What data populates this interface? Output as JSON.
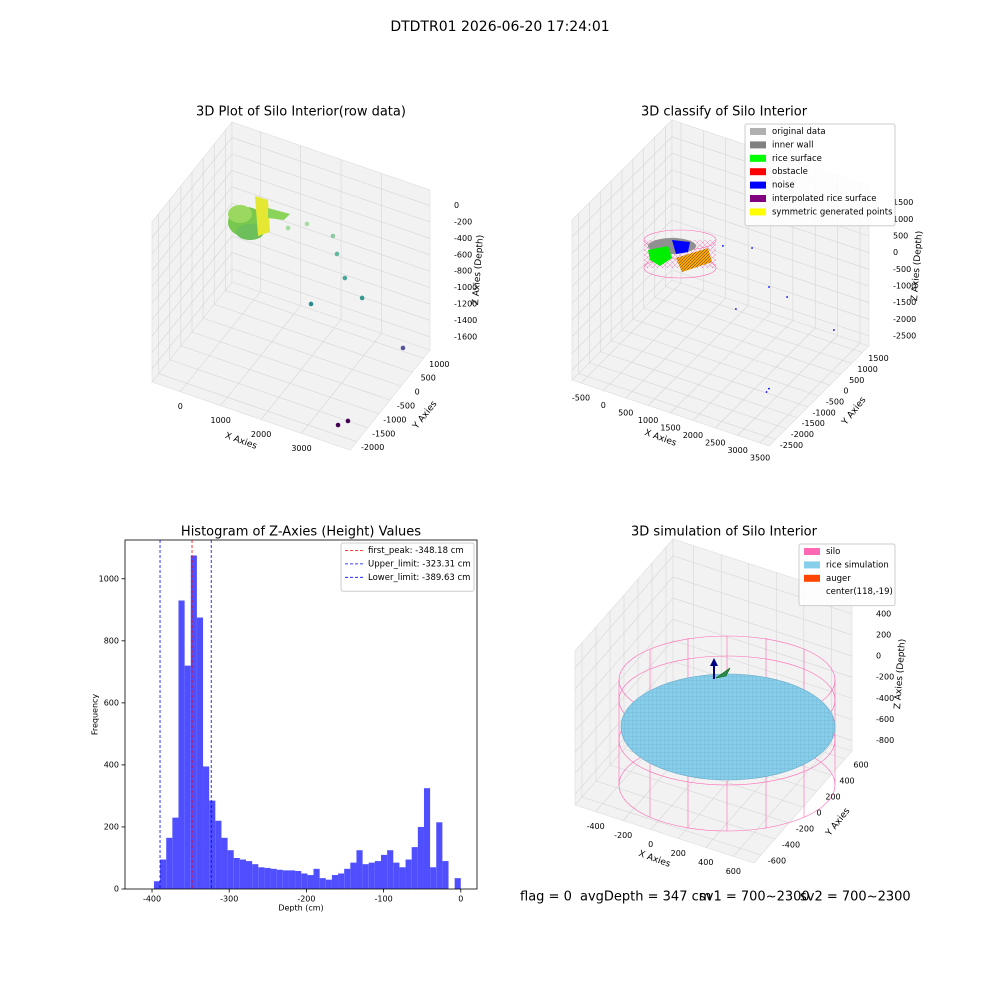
{
  "suptitle": "DTDTR01 2026-06-20 17:24:01",
  "footer": [
    "flag = 0",
    "avgDepth = 347 cm",
    "sv1 = 700~2300",
    "sv2 = 700~2300"
  ],
  "chart_data": [
    {
      "type": "scatter3d",
      "title": "3D Plot of Silo Interior(row data)",
      "xlabel": "X Axies",
      "ylabel": "Y Axies",
      "zlabel": "Z Axies (Depth)",
      "xlim": [
        -700,
        4200
      ],
      "ylim": [
        -2300,
        1300
      ],
      "zlim": [
        -1760,
        190
      ],
      "xticks": [
        0,
        1000,
        2000,
        3000
      ],
      "yticks": [
        -2000,
        -1500,
        -1000,
        -500,
        0,
        500,
        1000
      ],
      "zticks": [
        -1600,
        -1400,
        -1200,
        -1000,
        -800,
        -600,
        -400,
        -200,
        0
      ],
      "points": {
        "x": [
          1402,
          1870,
          2514,
          2612,
          2808,
          3235,
          1971,
          3696,
          3984,
          3739
        ],
        "y": [
          0,
          0,
          0,
          0,
          0,
          0,
          0,
          1000,
          -2000,
          -2000
        ],
        "z": [
          -307,
          -177,
          -216,
          -418,
          -678,
          -849,
          -1136,
          -1719,
          -1544,
          -1635
        ],
        "colors": [
          "#a6dba0",
          "#a6dba0",
          "#8cc9a0",
          "#66b7a0",
          "#4aa79a",
          "#35978f",
          "#2c8c92",
          "#59539a",
          "#440154",
          "#440154"
        ]
      }
    },
    {
      "type": "scatter3d",
      "title": "3D classify of Silo Interior",
      "xlabel": "X Axies",
      "ylabel": "Y Axies",
      "zlabel": "Z Axies (Depth)",
      "xlim": [
        -700,
        3700
      ],
      "ylim": [
        -2800,
        1800
      ],
      "zlim": [
        -2800,
        2000
      ],
      "xticks": [
        -500,
        0,
        500,
        1000,
        1500,
        2000,
        2500,
        3000,
        3500
      ],
      "yticks": [
        -2500,
        -2000,
        -1500,
        -1000,
        -500,
        0,
        500,
        1000,
        1500
      ],
      "zticks": [
        -2500,
        -2000,
        -1500,
        -1000,
        -500,
        0,
        500,
        1000,
        1500
      ],
      "legend_loc": "upper right",
      "legend": [
        {
          "name": "original data",
          "color": "#b0b0b0"
        },
        {
          "name": "inner wall",
          "color": "#808080"
        },
        {
          "name": "rice surface",
          "color": "#00ff00"
        },
        {
          "name": "obstacle",
          "color": "#ff0000"
        },
        {
          "name": "noise",
          "color": "#0000ff"
        },
        {
          "name": "interpolated rice surface",
          "color": "#800080"
        },
        {
          "name": "symmetric generated points",
          "color": "#ffff00"
        }
      ],
      "points": {
        "x": [
          1311,
          1962,
          2340,
          2745,
          1601,
          3207,
          3500,
          3650
        ],
        "y": [
          0,
          0,
          0,
          0,
          0,
          1200,
          -2500,
          -2700
        ],
        "z": [
          301,
          531,
          -467,
          -587,
          -1461,
          -2152,
          -1466,
          -1168
        ],
        "color": "#0000ff"
      }
    },
    {
      "type": "histogram",
      "title": "Histogram of Z-Axies (Height) Values",
      "xlabel": "Depth (cm)",
      "ylabel": "Frequency",
      "color": "#4f4fff",
      "xlim": [
        -435,
        21
      ],
      "ylim": [
        0,
        1125
      ],
      "xticks": [
        -400,
        -300,
        -200,
        -100,
        0
      ],
      "yticks": [
        0,
        200,
        400,
        600,
        800,
        1000
      ],
      "bins": [
        -397.5,
        -389.55,
        -381.6,
        -373.65,
        -365.7,
        -357.75,
        -349.8,
        -341.85,
        -333.9,
        -325.95,
        -318,
        -310.05,
        -302.1,
        -294.15,
        -286.2,
        -278.25,
        -270.3,
        -262.35,
        -254.4,
        -246.45,
        -238.5,
        -230.55,
        -222.6,
        -214.65,
        -206.7,
        -198.75,
        -190.8,
        -182.85,
        -174.9,
        -166.95,
        -159,
        -151.05,
        -143.1,
        -135.15,
        -127.2,
        -119.25,
        -111.3,
        -103.35,
        -95.4,
        -87.45,
        -79.5,
        -71.55,
        -63.6,
        -55.65,
        -47.7,
        -39.75,
        -31.8,
        -23.85,
        -15.9,
        -7.95,
        0
      ],
      "counts": [
        25,
        95,
        165,
        230,
        930,
        720,
        1075,
        875,
        395,
        285,
        220,
        165,
        125,
        100,
        95,
        90,
        80,
        70,
        68,
        65,
        62,
        60,
        60,
        58,
        50,
        45,
        65,
        35,
        30,
        45,
        50,
        65,
        85,
        125,
        80,
        85,
        90,
        110,
        125,
        85,
        70,
        95,
        135,
        200,
        325,
        70,
        215,
        90,
        0,
        35
      ],
      "legend_loc": "upper right",
      "lines": [
        {
          "label": "first_peak: -348.18 cm",
          "value": -348.18,
          "color": "#ff0000"
        },
        {
          "label": "Upper_limit: -323.31 cm",
          "value": -323.31,
          "color": "#0000ff"
        },
        {
          "label": "Lower_limit: -389.63 cm",
          "value": -389.63,
          "color": "#0000ff"
        }
      ]
    },
    {
      "type": "surface3d",
      "title": "3D simulation of Silo Interior",
      "xlabel": "X Axies",
      "ylabel": "Y Axies",
      "zlabel": "Z Axies (Depth)",
      "xlim": [
        -550,
        750
      ],
      "ylim": [
        -700,
        700
      ],
      "zlim": [
        -900,
        560
      ],
      "xticks": [
        -400,
        -200,
        0,
        200,
        400,
        600
      ],
      "yticks": [
        -600,
        -400,
        -200,
        0,
        200,
        400,
        600
      ],
      "zticks": [
        -800,
        -600,
        -400,
        -200,
        0,
        200,
        400
      ],
      "legend_loc": "upper right",
      "legend": [
        {
          "name": "silo",
          "color": "#ff69b4"
        },
        {
          "name": "rice simulation",
          "color": "#87ceeb"
        },
        {
          "name": "auger",
          "color": "#ff4500"
        },
        {
          "name": "center(118,-19)"
        }
      ]
    }
  ]
}
